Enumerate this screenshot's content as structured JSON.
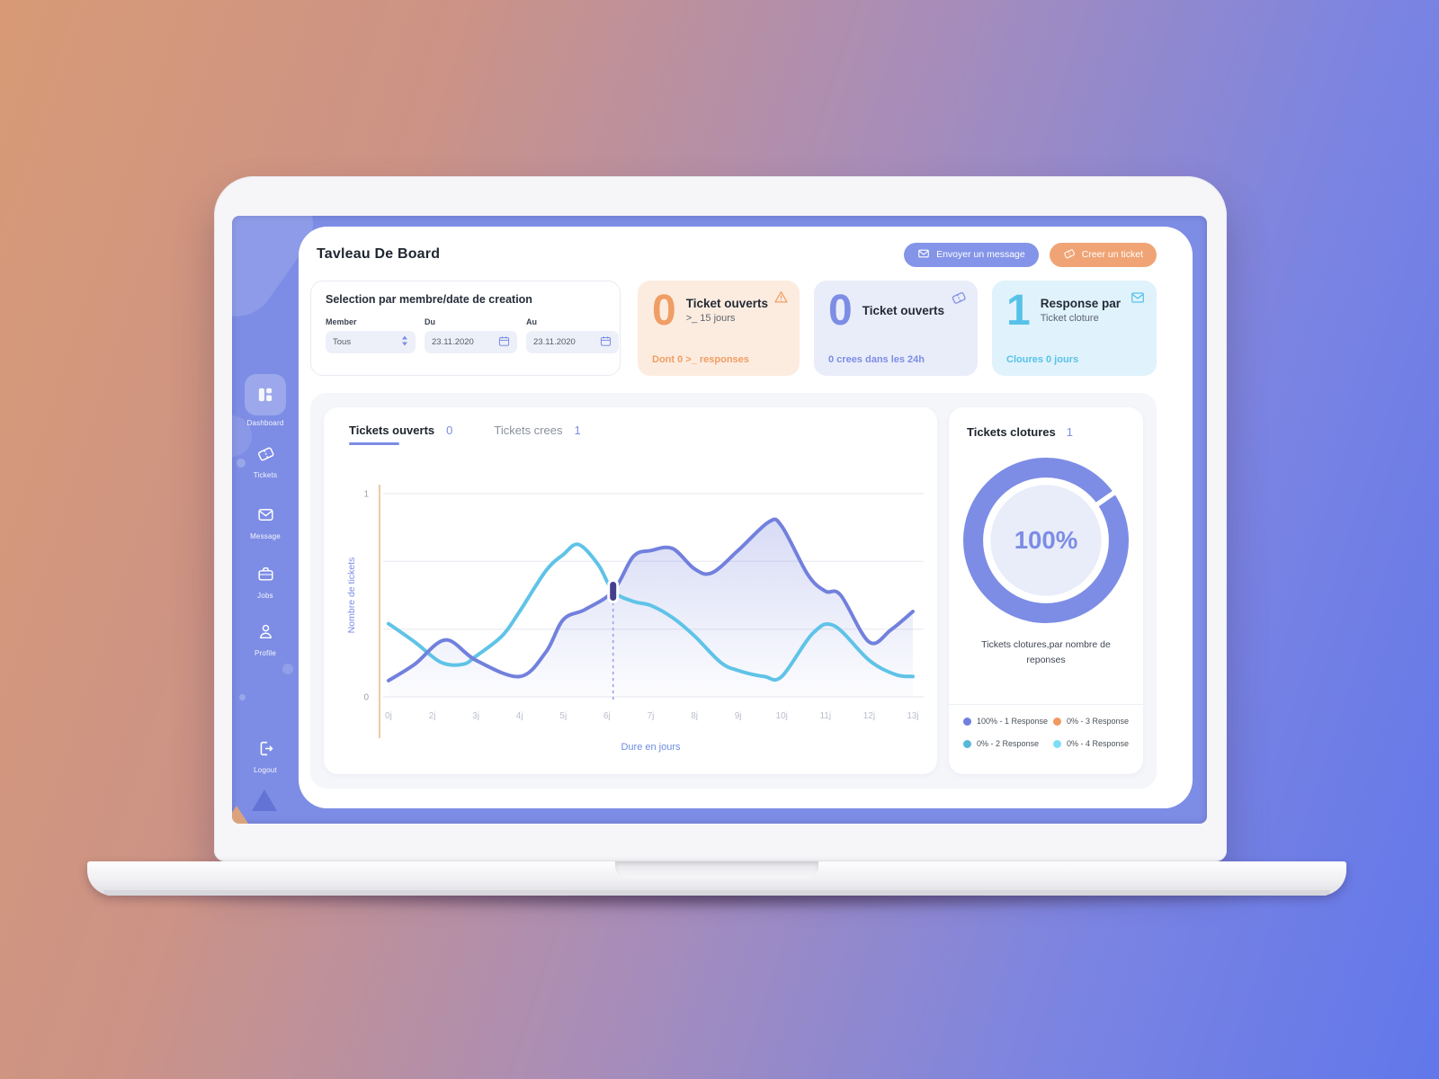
{
  "header": {
    "title": "Tavleau De Board",
    "buttons": [
      {
        "label": "Envoyer un message",
        "icon": "envelope-icon",
        "bg": "#8494e8"
      },
      {
        "label": "Creer un ticket",
        "icon": "ticket-icon",
        "bg": "#f0a475"
      }
    ]
  },
  "sidebar": {
    "items": [
      {
        "label": "Dashboard",
        "icon": "dashboard-grid-icon",
        "active": true
      },
      {
        "label": "Tickets",
        "icon": "ticket-icon",
        "active": false
      },
      {
        "label": "Message",
        "icon": "envelope-icon",
        "active": false
      },
      {
        "label": "Jobs",
        "icon": "briefcase-icon",
        "active": false
      },
      {
        "label": "Profile",
        "icon": "person-icon",
        "active": false
      }
    ],
    "logout": {
      "label": "Logout",
      "icon": "logout-icon"
    }
  },
  "filters": {
    "title": "Selection par membre/date de creation",
    "member": {
      "label": "Member",
      "value": "Tous"
    },
    "date_from": {
      "label": "Du",
      "value": "23.11.2020"
    },
    "date_to": {
      "label": "Au",
      "value": "23.11.2020"
    }
  },
  "stat_cards": [
    {
      "value": "0",
      "title": "Ticket ouverts",
      "subtitle": ">_ 15 jours",
      "footer": "Dont 0 >_ responses",
      "icon": "warning-icon",
      "accent": "#ef9e66",
      "bg": "#fcecdf"
    },
    {
      "value": "0",
      "title": "Ticket ouverts",
      "subtitle": "",
      "footer": "0 crees dans les 24h",
      "icon": "ticket-icon",
      "accent": "#7d8de5",
      "bg": "#e9edf9"
    },
    {
      "value": "1",
      "title": "Response par",
      "subtitle": "Ticket cloture",
      "footer": "Cloures 0 jours",
      "icon": "envelope-icon",
      "accent": "#57c2e9",
      "bg": "#e0f2fb"
    }
  ],
  "tabs": [
    {
      "label": "Tickets ouverts",
      "count": "0",
      "active": true
    },
    {
      "label": "Tickets crees",
      "count": "1",
      "active": false
    }
  ],
  "chart_data": {
    "type": "line",
    "xlabel": "Dure en jours",
    "ylabel": "Nombre de tickets",
    "categories": [
      "0j",
      "2j",
      "3j",
      "4j",
      "5j",
      "6j",
      "7j",
      "8j",
      "9j",
      "10j",
      "11j",
      "12j",
      "13j"
    ],
    "ylim": [
      0,
      1
    ],
    "yticks": [
      0,
      1
    ],
    "grid": "horizontal",
    "series": [
      {
        "name": "Tickets ouverts",
        "color": "#7280dd",
        "fill": true,
        "values": [
          0.08,
          0.27,
          0.18,
          0.1,
          0.38,
          0.52,
          0.72,
          0.63,
          0.72,
          0.85,
          0.52,
          0.27,
          0.42
        ],
        "points": [
          [
            0,
            0.08
          ],
          [
            0.6,
            0.16
          ],
          [
            1.3,
            0.28
          ],
          [
            2,
            0.18
          ],
          [
            3,
            0.1
          ],
          [
            3.6,
            0.22
          ],
          [
            4,
            0.38
          ],
          [
            4.5,
            0.43
          ],
          [
            5.14,
            0.52
          ],
          [
            5.6,
            0.69
          ],
          [
            6,
            0.72
          ],
          [
            6.5,
            0.73
          ],
          [
            7,
            0.63
          ],
          [
            7.4,
            0.61
          ],
          [
            8,
            0.72
          ],
          [
            8.7,
            0.86
          ],
          [
            9,
            0.84
          ],
          [
            9.6,
            0.6
          ],
          [
            10,
            0.52
          ],
          [
            10.35,
            0.5
          ],
          [
            11,
            0.27
          ],
          [
            11.5,
            0.33
          ],
          [
            12,
            0.42
          ]
        ]
      },
      {
        "name": "Tickets crees",
        "color": "#5fc3e7",
        "fill": false,
        "values": [
          0.36,
          0.18,
          0.2,
          0.42,
          0.7,
          0.6,
          0.45,
          0.3,
          0.13,
          0.1,
          0.33,
          0.18,
          0.1
        ],
        "points": [
          [
            0,
            0.36
          ],
          [
            0.6,
            0.27
          ],
          [
            1.2,
            0.17
          ],
          [
            1.7,
            0.16
          ],
          [
            2,
            0.2
          ],
          [
            2.6,
            0.3
          ],
          [
            3,
            0.42
          ],
          [
            3.6,
            0.62
          ],
          [
            4,
            0.7
          ],
          [
            4.35,
            0.75
          ],
          [
            4.8,
            0.65
          ],
          [
            5.14,
            0.52
          ],
          [
            5.6,
            0.47
          ],
          [
            6,
            0.45
          ],
          [
            6.5,
            0.39
          ],
          [
            7,
            0.3
          ],
          [
            7.6,
            0.17
          ],
          [
            8,
            0.13
          ],
          [
            8.6,
            0.1
          ],
          [
            9,
            0.1
          ],
          [
            9.7,
            0.31
          ],
          [
            10.2,
            0.35
          ],
          [
            11,
            0.18
          ],
          [
            11.6,
            0.11
          ],
          [
            12,
            0.1
          ]
        ]
      }
    ],
    "marker": {
      "x": 5.14,
      "y": 0.52
    }
  },
  "donut": {
    "title": "Tickets clotures",
    "count": "1",
    "center_label": "100%",
    "caption": "Tickets clotures,par nombre de reponses",
    "ring_color": "#7d8de5",
    "inner_color": "#e9edfa",
    "gap_angle_deg": 55,
    "legend": [
      {
        "label": "100% - 1 Response",
        "color": "#6f80dd"
      },
      {
        "label": "0% - 2 Response",
        "color": "#57b8d9"
      },
      {
        "label": "0% - 3 Response",
        "color": "#f09a62"
      },
      {
        "label": "0% - 4 Response",
        "color": "#7edef7"
      }
    ]
  }
}
